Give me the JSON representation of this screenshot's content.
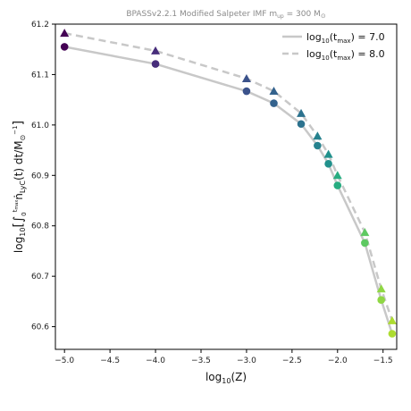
{
  "chart_data": {
    "type": "line",
    "title_main": "BPASSv2.2.1 Modified Salpeter IMF m",
    "title_sub": "up",
    "title_tail": " = 300 M",
    "title_sun": "⊙",
    "xlabel_pre": "log",
    "xlabel_sub": "10",
    "xlabel_post": "(Z)",
    "ylabel_pre": "log",
    "ylabel_sub": "10",
    "ylabel_body": "[∫",
    "ylabel_lim_lo": "0",
    "ylabel_lim_hi": "t",
    "ylabel_lim_hi_sub": "max",
    "ylabel_n": "ṅ",
    "ylabel_n_sub": "LyC",
    "ylabel_tail": "(t) dt/M",
    "ylabel_tail_sub": "⊙",
    "ylabel_tail_sup": "−1",
    "ylabel_close": "]",
    "xlim": [
      -5.1,
      -1.35
    ],
    "ylim": [
      60.555,
      61.2
    ],
    "xticks": [
      -5.0,
      -4.5,
      -4.0,
      -3.5,
      -3.0,
      -2.5,
      -2.0,
      -1.5
    ],
    "xtick_labels": [
      "−5.0",
      "−4.5",
      "−4.0",
      "−3.5",
      "−3.0",
      "−2.5",
      "−2.0",
      "−1.5"
    ],
    "yticks": [
      60.6,
      60.7,
      60.8,
      60.9,
      61.0,
      61.1,
      61.2
    ],
    "ytick_labels": [
      "60.6",
      "60.7",
      "60.8",
      "60.9",
      "61.0",
      "61.1",
      "61.2"
    ],
    "x": [
      -5.0,
      -4.0,
      -3.0,
      -2.7,
      -2.4,
      -2.22,
      -2.1,
      -2.0,
      -1.7,
      -1.52,
      -1.4
    ],
    "point_colors": [
      "#440154",
      "#472d7b",
      "#3b528b",
      "#33628d",
      "#2c728e",
      "#26828e",
      "#21918c",
      "#27ad81",
      "#5ec962",
      "#8fd744",
      "#addc30"
    ],
    "series": [
      {
        "name_pre": "log",
        "name_sub": "10",
        "name_mid": "(t",
        "name_sub2": "max",
        "name_post": ") = 7.0",
        "style": "solid",
        "marker": "circle",
        "line_color": "#c8c8c8",
        "values": [
          61.155,
          61.121,
          61.067,
          61.043,
          61.002,
          60.959,
          60.923,
          60.88,
          60.766,
          60.653,
          60.586
        ]
      },
      {
        "name_pre": "log",
        "name_sub": "10",
        "name_mid": "(t",
        "name_sub2": "max",
        "name_post": ") = 8.0",
        "style": "dashed",
        "marker": "triangle",
        "line_color": "#c8c8c8",
        "values": [
          61.182,
          61.147,
          61.092,
          61.067,
          61.023,
          60.978,
          60.942,
          60.9,
          60.787,
          60.675,
          60.612
        ]
      }
    ],
    "legend_position": "top-right",
    "grid": false
  }
}
